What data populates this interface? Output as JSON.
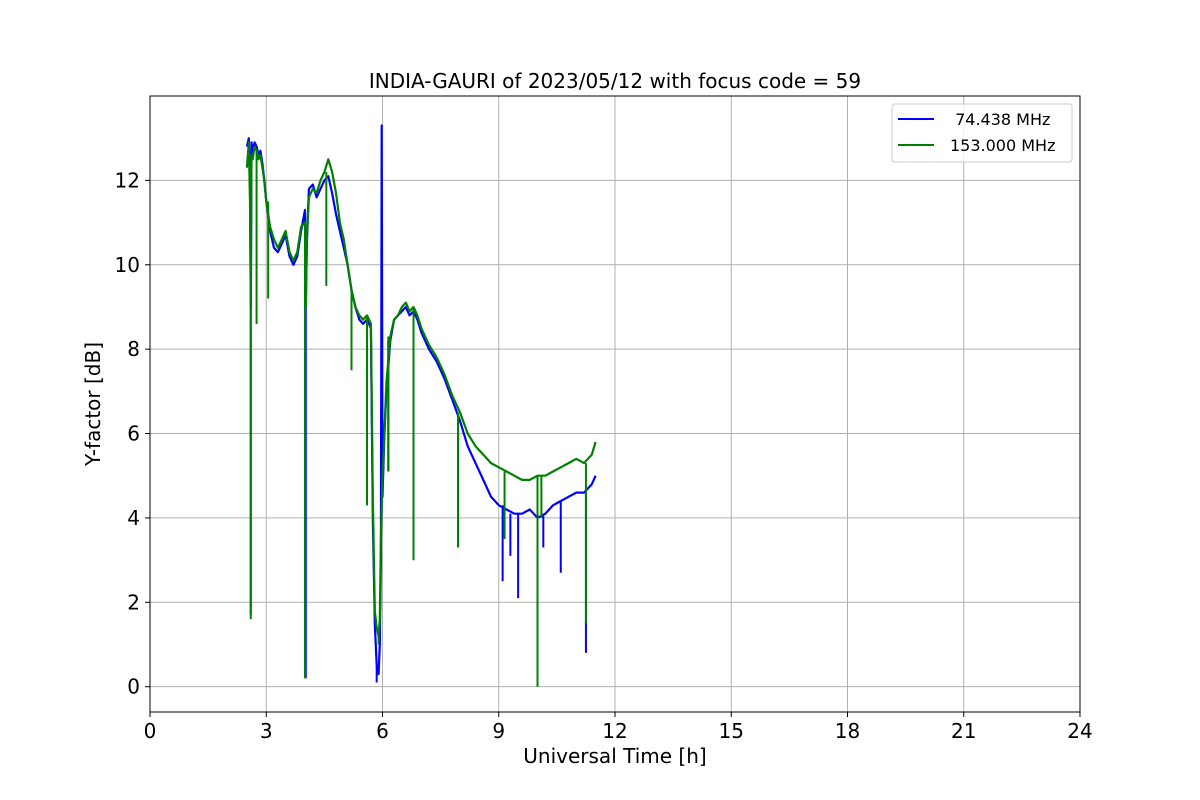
{
  "chart_data": {
    "type": "line",
    "title": "INDIA-GAURI of 2023/05/12 with focus code = 59",
    "xlabel": "Universal Time [h]",
    "ylabel": "Y-factor [dB]",
    "xlim": [
      0,
      24
    ],
    "ylim": [
      -0.6,
      14.0
    ],
    "xticks": [
      0,
      3,
      6,
      9,
      12,
      15,
      18,
      21,
      24
    ],
    "yticks": [
      0,
      2,
      4,
      6,
      8,
      10,
      12
    ],
    "grid": true,
    "legend_position": "upper-right",
    "series": [
      {
        "name": " 74.438 MHz",
        "color": "#0000ff",
        "x": [
          2.5,
          2.55,
          2.58,
          2.6,
          2.62,
          2.65,
          2.7,
          2.75,
          2.8,
          2.85,
          2.9,
          2.95,
          3.0,
          3.1,
          3.2,
          3.3,
          3.4,
          3.5,
          3.6,
          3.7,
          3.8,
          3.9,
          4.0,
          4.02,
          4.05,
          4.1,
          4.2,
          4.3,
          4.4,
          4.5,
          4.6,
          4.7,
          4.8,
          4.9,
          5.0,
          5.1,
          5.2,
          5.3,
          5.4,
          5.5,
          5.6,
          5.7,
          5.75,
          5.8,
          5.85,
          5.9,
          5.93,
          5.96,
          5.98,
          6.0,
          6.05,
          6.1,
          6.2,
          6.3,
          6.4,
          6.5,
          6.6,
          6.7,
          6.8,
          6.9,
          7.0,
          7.2,
          7.4,
          7.6,
          7.8,
          8.0,
          8.2,
          8.4,
          8.6,
          8.8,
          9.0,
          9.2,
          9.4,
          9.6,
          9.8,
          10.0,
          10.2,
          10.4,
          10.6,
          10.8,
          11.0,
          11.2,
          11.4,
          11.5
        ],
        "y": [
          12.8,
          13.0,
          12.0,
          9.0,
          12.9,
          12.7,
          12.9,
          12.8,
          12.6,
          12.7,
          12.4,
          12.0,
          11.5,
          10.8,
          10.4,
          10.3,
          10.5,
          10.7,
          10.2,
          10.0,
          10.2,
          10.8,
          11.3,
          9.0,
          10.5,
          11.8,
          11.9,
          11.6,
          11.8,
          12.0,
          12.1,
          11.7,
          11.2,
          10.8,
          10.4,
          10.0,
          9.4,
          9.0,
          8.7,
          8.6,
          8.7,
          8.5,
          4.0,
          1.5,
          0.5,
          0.3,
          1.0,
          3.0,
          13.3,
          4.5,
          6.0,
          7.0,
          8.2,
          8.7,
          8.8,
          8.9,
          9.0,
          8.8,
          8.9,
          8.7,
          8.4,
          8.0,
          7.7,
          7.3,
          6.8,
          6.3,
          5.7,
          5.3,
          4.9,
          4.5,
          4.3,
          4.2,
          4.1,
          4.1,
          4.2,
          4.0,
          4.1,
          4.3,
          4.4,
          4.5,
          4.6,
          4.6,
          4.8,
          5.0
        ],
        "spikes": [
          [
            2.6,
            1.7
          ],
          [
            4.02,
            0.2
          ],
          [
            5.6,
            4.3
          ],
          [
            5.85,
            0.1
          ],
          [
            6.15,
            5.1
          ],
          [
            6.8,
            3.0
          ],
          [
            7.95,
            3.3
          ],
          [
            9.1,
            2.5
          ],
          [
            9.3,
            3.1
          ],
          [
            9.5,
            2.1
          ],
          [
            10.0,
            0.9
          ],
          [
            10.15,
            3.3
          ],
          [
            10.6,
            2.7
          ],
          [
            11.25,
            0.8
          ]
        ]
      },
      {
        "name": "153.000 MHz",
        "color": "#008000",
        "x": [
          2.5,
          2.55,
          2.58,
          2.6,
          2.62,
          2.65,
          2.7,
          2.75,
          2.8,
          2.85,
          2.9,
          2.95,
          3.0,
          3.1,
          3.2,
          3.3,
          3.4,
          3.5,
          3.6,
          3.7,
          3.8,
          3.9,
          4.0,
          4.02,
          4.05,
          4.1,
          4.2,
          4.3,
          4.4,
          4.5,
          4.6,
          4.7,
          4.8,
          4.9,
          5.0,
          5.1,
          5.2,
          5.3,
          5.4,
          5.5,
          5.6,
          5.7,
          5.75,
          5.8,
          5.85,
          5.9,
          5.93,
          5.96,
          6.0,
          6.05,
          6.1,
          6.2,
          6.3,
          6.4,
          6.5,
          6.6,
          6.7,
          6.8,
          6.9,
          7.0,
          7.2,
          7.4,
          7.6,
          7.8,
          8.0,
          8.2,
          8.4,
          8.6,
          8.8,
          9.0,
          9.2,
          9.4,
          9.6,
          9.8,
          10.0,
          10.2,
          10.4,
          10.6,
          10.8,
          11.0,
          11.2,
          11.4,
          11.5
        ],
        "y": [
          12.3,
          12.9,
          11.5,
          9.0,
          12.6,
          12.5,
          12.8,
          12.7,
          12.5,
          12.6,
          12.3,
          12.0,
          11.5,
          10.9,
          10.6,
          10.4,
          10.6,
          10.8,
          10.3,
          10.1,
          10.3,
          10.9,
          11.0,
          9.0,
          10.7,
          11.6,
          11.8,
          11.7,
          12.0,
          12.2,
          12.5,
          12.2,
          11.7,
          11.0,
          10.6,
          10.0,
          9.4,
          9.0,
          8.8,
          8.7,
          8.8,
          8.6,
          4.5,
          1.8,
          1.4,
          1.2,
          1.6,
          3.5,
          5.0,
          6.0,
          7.2,
          8.3,
          8.7,
          8.8,
          9.0,
          9.1,
          8.9,
          9.0,
          8.8,
          8.5,
          8.1,
          7.8,
          7.4,
          6.9,
          6.5,
          6.0,
          5.7,
          5.5,
          5.3,
          5.2,
          5.1,
          5.0,
          4.9,
          4.9,
          5.0,
          5.0,
          5.1,
          5.2,
          5.3,
          5.4,
          5.3,
          5.5,
          5.8
        ],
        "spikes": [
          [
            2.6,
            1.6
          ],
          [
            2.75,
            8.6
          ],
          [
            3.05,
            9.2
          ],
          [
            4.0,
            0.2
          ],
          [
            4.55,
            9.5
          ],
          [
            5.2,
            7.5
          ],
          [
            5.6,
            4.3
          ],
          [
            5.9,
            1.0
          ],
          [
            6.15,
            5.1
          ],
          [
            6.8,
            3.0
          ],
          [
            7.95,
            3.3
          ],
          [
            9.15,
            3.5
          ],
          [
            10.0,
            0.0
          ],
          [
            10.1,
            4.0
          ],
          [
            11.25,
            1.5
          ]
        ]
      }
    ]
  }
}
